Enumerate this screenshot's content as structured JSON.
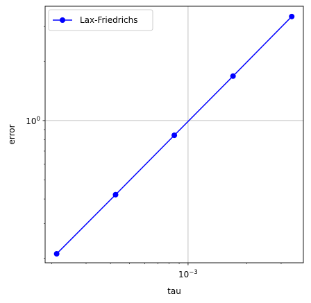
{
  "chart_data": {
    "type": "line",
    "xscale": "log",
    "yscale": "log",
    "xlabel": "tau",
    "ylabel": "error",
    "grid": true,
    "legend_position": "upper-left",
    "series": [
      {
        "name": "Lax-Friedrichs",
        "color": "#0000ff",
        "marker": "circle",
        "x": [
          0.000212,
          0.000425,
          0.00085,
          0.0017,
          0.0034
        ],
        "y": [
          0.211,
          0.421,
          0.842,
          1.68,
          3.37
        ]
      }
    ],
    "xlim": [
      0.000185,
      0.0039
    ],
    "ylim": [
      0.19,
      3.8
    ],
    "x_major_ticks": [
      {
        "value": 0.001,
        "base": "10",
        "exp": "−3"
      }
    ],
    "y_major_ticks": [
      {
        "value": 1.0,
        "base": "10",
        "exp": "0"
      }
    ],
    "x_minor_ticks": [
      0.0002,
      0.0003,
      0.0004,
      0.0005,
      0.0006,
      0.0007,
      0.0008,
      0.0009,
      0.002,
      0.003
    ],
    "y_minor_ticks": [
      0.2,
      0.3,
      0.4,
      0.5,
      0.6,
      0.7,
      0.8,
      0.9,
      2,
      3
    ]
  }
}
